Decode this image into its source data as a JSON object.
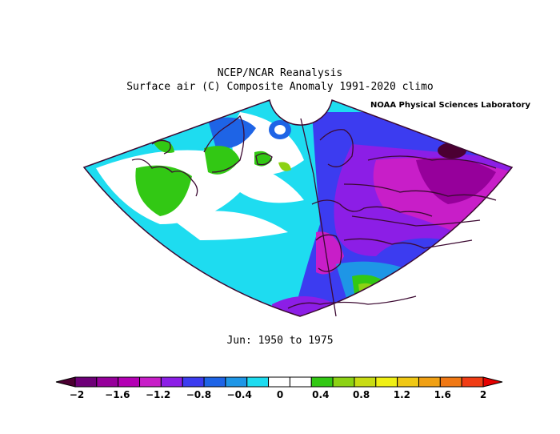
{
  "title": {
    "line1": "NCEP/NCAR Reanalysis",
    "line2": "Surface air (C) Composite Anomaly 1991-2020 climo"
  },
  "credit": "NOAA Physical Sciences Laboratory",
  "period": "Jun: 1950 to 1975",
  "colorbar": {
    "min": -2,
    "max": 2,
    "step": 0.2,
    "tick_labels": [
      "-2",
      "-1.6",
      "-1.2",
      "-0.8",
      "-0.4",
      "0",
      "0.4",
      "0.8",
      "1.2",
      "1.6",
      "2"
    ],
    "colors": [
      "#4b0032",
      "#6e0078",
      "#96009b",
      "#b400b4",
      "#c81ec8",
      "#8c1ee6",
      "#3c3cf0",
      "#1e64e6",
      "#1e96e6",
      "#1edcf0",
      "#ffffff",
      "#ffffff",
      "#32c814",
      "#8cd214",
      "#c8dc14",
      "#f0f014",
      "#f0c814",
      "#f0a014",
      "#f07814",
      "#f03c14",
      "#e60000"
    ]
  },
  "map": {
    "projection": "conic sector",
    "region": "North Atlantic / Europe / North Africa",
    "coast_color": "#3c0a32"
  }
}
